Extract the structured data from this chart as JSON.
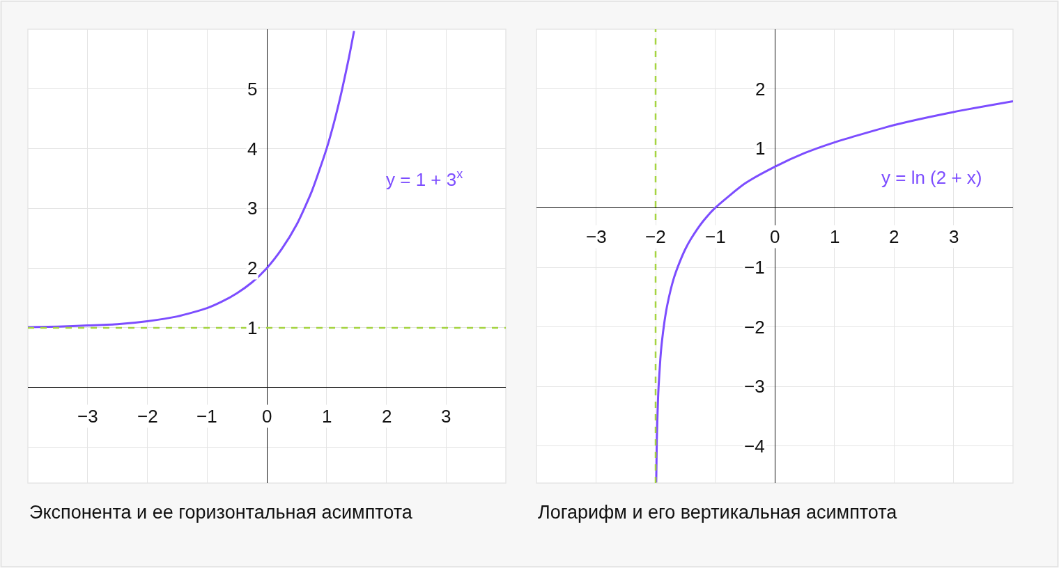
{
  "chart_data": [
    {
      "type": "line",
      "title": "Экспонента и ее горизонтальная асимптота",
      "series": [
        {
          "color": "#7c4dff",
          "x": [
            -4,
            -3.5,
            -3,
            -2.5,
            -2,
            -1.5,
            -1,
            -0.75,
            -0.5,
            -0.25,
            0,
            0.25,
            0.5,
            0.75,
            1,
            1.125,
            1.25,
            1.375,
            1.46
          ],
          "values": [
            1.01,
            1.02,
            1.04,
            1.06,
            1.11,
            1.19,
            1.33,
            1.44,
            1.58,
            1.76,
            2,
            2.32,
            2.73,
            3.28,
            4,
            4.44,
            4.95,
            5.53,
            5.97
          ]
        }
      ],
      "annotations": [
        "y = 1 + 3$^{x}$"
      ],
      "ref_lines": [
        {
          "axis": "y",
          "value": 1,
          "color": "#a5d441",
          "line_style": "dashed"
        }
      ],
      "xlim": [
        -4,
        4
      ],
      "ylim": [
        -1.6,
        6
      ],
      "xticks": [
        {
          "value": -3,
          "label": "−3"
        },
        {
          "value": -2,
          "label": "−2"
        },
        {
          "value": -1,
          "label": "−1"
        },
        0,
        1,
        2,
        3
      ],
      "yticks": [
        {
          "value": -1,
          "label": null
        },
        {
          "value": 0,
          "label": null
        },
        1,
        2,
        3,
        4,
        5
      ],
      "grid": true
    },
    {
      "type": "line",
      "title": "Логарифм и его вертикальная асимптота",
      "series": [
        {
          "color": "#7c4dff",
          "x": [
            -1.99,
            -1.98,
            -1.96,
            -1.95,
            -1.92,
            -1.9,
            -1.85,
            -1.8,
            -1.7,
            -1.6,
            -1.5,
            -1.4,
            -1.2,
            -1,
            -0.5,
            0,
            0.5,
            1,
            2,
            3,
            4
          ],
          "values": [
            -4.61,
            -3.91,
            -3.22,
            -3.0,
            -2.53,
            -2.3,
            -1.9,
            -1.61,
            -1.2,
            -0.92,
            -0.69,
            -0.51,
            -0.22,
            0,
            0.41,
            0.69,
            0.92,
            1.1,
            1.39,
            1.61,
            1.79
          ]
        }
      ],
      "annotations": [
        "y = ln (2 + x)"
      ],
      "ref_lines": [
        {
          "axis": "x",
          "value": -2,
          "color": "#a5d441",
          "line_style": "dashed"
        }
      ],
      "xlim": [
        -4,
        4
      ],
      "ylim": [
        -4.62,
        3
      ],
      "xticks": [
        {
          "value": -3,
          "label": "−3"
        },
        {
          "value": -2,
          "label": "−2"
        },
        {
          "value": -1,
          "label": "−1"
        },
        0,
        1,
        2,
        3
      ],
      "yticks": [
        {
          "value": -4,
          "label": "−4"
        },
        {
          "value": -3,
          "label": "−3"
        },
        {
          "value": -2,
          "label": "−2"
        },
        {
          "value": -1,
          "label": "−1"
        },
        {
          "value": 0,
          "label": null
        },
        1,
        2
      ],
      "grid": true
    }
  ]
}
